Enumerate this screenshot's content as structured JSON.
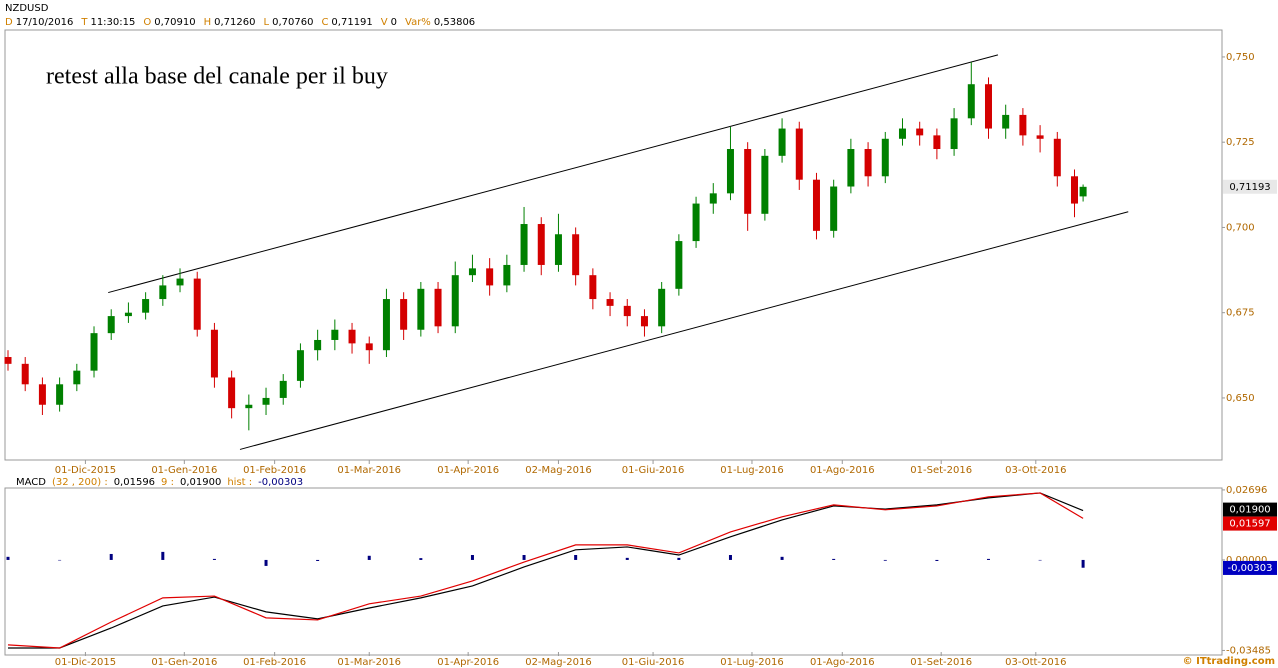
{
  "header": {
    "symbol": "NZDUSD",
    "fields": [
      {
        "key": "D",
        "value": "17/10/2016"
      },
      {
        "key": "T",
        "value": "11:30:15"
      },
      {
        "key": "O",
        "value": "0,70910"
      },
      {
        "key": "H",
        "value": "0,71260"
      },
      {
        "key": "L",
        "value": "0,70760"
      },
      {
        "key": "C",
        "value": "0,71191"
      },
      {
        "key": "V",
        "value": "0"
      },
      {
        "key": "Var%",
        "value": "0,53806"
      }
    ]
  },
  "footer": "© ITtrading.com",
  "chart_data": [
    {
      "type": "candlestick",
      "annotation": "retest alla base del canale per il buy",
      "up_color": "#008000",
      "down_color": "#d40000",
      "x": [
        0,
        4,
        8,
        12,
        16,
        20,
        24,
        28,
        32,
        36,
        40,
        44,
        48,
        52,
        56,
        60,
        64,
        68,
        72,
        76,
        80,
        84,
        88,
        92,
        96,
        100,
        104,
        108,
        112,
        116,
        120,
        124,
        128,
        132,
        136,
        140,
        144,
        148,
        152,
        156,
        160,
        164,
        168,
        172,
        176,
        180,
        184,
        188,
        192,
        196,
        200,
        204,
        208,
        212,
        216,
        220,
        224,
        228,
        232,
        236,
        240,
        244,
        248,
        250
      ],
      "open": [
        0.662,
        0.66,
        0.654,
        0.648,
        0.654,
        0.658,
        0.669,
        0.674,
        0.675,
        0.679,
        0.683,
        0.685,
        0.67,
        0.656,
        0.647,
        0.648,
        0.65,
        0.655,
        0.664,
        0.667,
        0.67,
        0.666,
        0.664,
        0.679,
        0.67,
        0.682,
        0.671,
        0.686,
        0.688,
        0.683,
        0.689,
        0.701,
        0.689,
        0.698,
        0.686,
        0.679,
        0.677,
        0.674,
        0.671,
        0.682,
        0.696,
        0.707,
        0.71,
        0.723,
        0.704,
        0.721,
        0.729,
        0.714,
        0.699,
        0.712,
        0.723,
        0.715,
        0.726,
        0.729,
        0.727,
        0.723,
        0.732,
        0.742,
        0.729,
        0.733,
        0.727,
        0.726,
        0.715,
        0.7091
      ],
      "high": [
        0.664,
        0.662,
        0.656,
        0.656,
        0.66,
        0.671,
        0.676,
        0.678,
        0.681,
        0.686,
        0.688,
        0.687,
        0.672,
        0.658,
        0.651,
        0.653,
        0.657,
        0.666,
        0.67,
        0.673,
        0.672,
        0.668,
        0.682,
        0.681,
        0.684,
        0.684,
        0.69,
        0.692,
        0.691,
        0.692,
        0.706,
        0.703,
        0.704,
        0.7,
        0.688,
        0.681,
        0.679,
        0.676,
        0.684,
        0.698,
        0.709,
        0.713,
        0.7295,
        0.725,
        0.723,
        0.732,
        0.731,
        0.716,
        0.714,
        0.726,
        0.725,
        0.728,
        0.732,
        0.731,
        0.729,
        0.735,
        0.7485,
        0.744,
        0.736,
        0.735,
        0.73,
        0.728,
        0.717,
        0.7126
      ],
      "low": [
        0.658,
        0.652,
        0.645,
        0.646,
        0.652,
        0.656,
        0.667,
        0.672,
        0.673,
        0.677,
        0.681,
        0.668,
        0.653,
        0.644,
        0.6405,
        0.645,
        0.648,
        0.653,
        0.661,
        0.664,
        0.663,
        0.66,
        0.662,
        0.667,
        0.668,
        0.669,
        0.669,
        0.684,
        0.68,
        0.681,
        0.687,
        0.686,
        0.687,
        0.683,
        0.676,
        0.674,
        0.671,
        0.668,
        0.669,
        0.68,
        0.694,
        0.704,
        0.708,
        0.699,
        0.702,
        0.719,
        0.711,
        0.6965,
        0.697,
        0.71,
        0.712,
        0.713,
        0.724,
        0.724,
        0.72,
        0.721,
        0.73,
        0.726,
        0.726,
        0.724,
        0.722,
        0.712,
        0.703,
        0.7076
      ],
      "close": [
        0.66,
        0.654,
        0.648,
        0.654,
        0.658,
        0.669,
        0.674,
        0.675,
        0.679,
        0.683,
        0.685,
        0.67,
        0.656,
        0.647,
        0.648,
        0.65,
        0.655,
        0.664,
        0.667,
        0.67,
        0.666,
        0.664,
        0.679,
        0.67,
        0.682,
        0.671,
        0.686,
        0.688,
        0.683,
        0.689,
        0.701,
        0.689,
        0.698,
        0.686,
        0.679,
        0.677,
        0.674,
        0.671,
        0.682,
        0.696,
        0.707,
        0.71,
        0.723,
        0.704,
        0.721,
        0.729,
        0.714,
        0.699,
        0.712,
        0.723,
        0.715,
        0.726,
        0.729,
        0.727,
        0.723,
        0.732,
        0.742,
        0.729,
        0.733,
        0.727,
        0.726,
        0.715,
        0.707,
        0.71191
      ],
      "trendlines": [
        {
          "x": [
            23.3,
            230.2
          ],
          "y": [
            0.6809,
            0.7506
          ]
        },
        {
          "x": [
            53.95,
            260.5
          ],
          "y": [
            0.6349,
            0.7046
          ]
        }
      ],
      "last_price": {
        "value": 0.71193,
        "label": "0,71193"
      },
      "xlim": [
        -0.7,
        282.3
      ],
      "ylim": [
        0.6318,
        0.7579
      ],
      "xticks": [
        {
          "value": 18,
          "label": "01-Dic-2015"
        },
        {
          "value": 41,
          "label": "01-Gen-2016"
        },
        {
          "value": 62,
          "label": "01-Feb-2016"
        },
        {
          "value": 84,
          "label": "01-Mar-2016"
        },
        {
          "value": 107,
          "label": "01-Apr-2016"
        },
        {
          "value": 128,
          "label": "02-Mag-2016"
        },
        {
          "value": 150,
          "label": "01-Giu-2016"
        },
        {
          "value": 173,
          "label": "01-Lug-2016"
        },
        {
          "value": 194,
          "label": "01-Ago-2016"
        },
        {
          "value": 217,
          "label": "01-Set-2016"
        },
        {
          "value": 239,
          "label": "03-Ott-2016"
        }
      ],
      "yticks": [
        {
          "value": 0.65,
          "label": "0,650"
        },
        {
          "value": 0.675,
          "label": "0,675"
        },
        {
          "value": 0.7,
          "label": "0,700"
        },
        {
          "value": 0.725,
          "label": "0,725"
        },
        {
          "value": 0.75,
          "label": "0,750"
        }
      ]
    },
    {
      "type": "macd",
      "header": [
        "MACD",
        "(32 , 200) :",
        "0,01596",
        "9 :",
        "0,01900",
        "hist :",
        "-0,00303"
      ],
      "x": [
        0,
        12,
        24,
        36,
        48,
        60,
        72,
        84,
        96,
        108,
        120,
        132,
        144,
        156,
        168,
        180,
        192,
        204,
        216,
        228,
        240,
        250
      ],
      "series": [
        {
          "color": "#000000",
          "values": [
            -0.0339,
            -0.0339,
            -0.0262,
            -0.0177,
            -0.0143,
            -0.02,
            -0.0227,
            -0.0185,
            -0.0146,
            -0.01,
            -0.0027,
            0.0039,
            0.005,
            0.0019,
            0.0089,
            0.0154,
            0.0208,
            0.0196,
            0.0212,
            0.0239,
            0.0258,
            0.019
          ],
          "last": {
            "value": 0.019,
            "label": "0,01900"
          }
        },
        {
          "color": "#e00000",
          "values": [
            -0.0327,
            -0.0339,
            -0.0239,
            -0.0146,
            -0.0139,
            -0.0223,
            -0.0231,
            -0.0169,
            -0.0139,
            -0.0081,
            -0.0008,
            0.0058,
            0.0058,
            0.0027,
            0.0108,
            0.0166,
            0.0212,
            0.0193,
            0.0208,
            0.0243,
            0.0258,
            0.016
          ],
          "last": {
            "value": 0.01597,
            "label": "0,01597"
          }
        }
      ],
      "hist": {
        "color": "#000080",
        "values": [
          0.0012,
          0,
          0.0023,
          0.0031,
          0.0004,
          -0.0023,
          -0.0004,
          0.0016,
          0.0007,
          0.0019,
          0.0019,
          0.0019,
          0.0008,
          0.0008,
          0.0019,
          0.0012,
          0.0004,
          -0.0003,
          -0.0004,
          0.0004,
          0,
          -0.003
        ],
        "last": {
          "value": -0.00303,
          "label": "-0,00303"
        }
      },
      "xlim": [
        -0.7,
        282.3
      ],
      "ylim": [
        -0.0366,
        0.0277
      ],
      "yticks": [
        {
          "value": 0.02696,
          "label": "0,02696"
        },
        {
          "value": 0,
          "label": "0,00000"
        },
        {
          "value": -0.03485,
          "label": "-0,03485"
        }
      ]
    }
  ]
}
